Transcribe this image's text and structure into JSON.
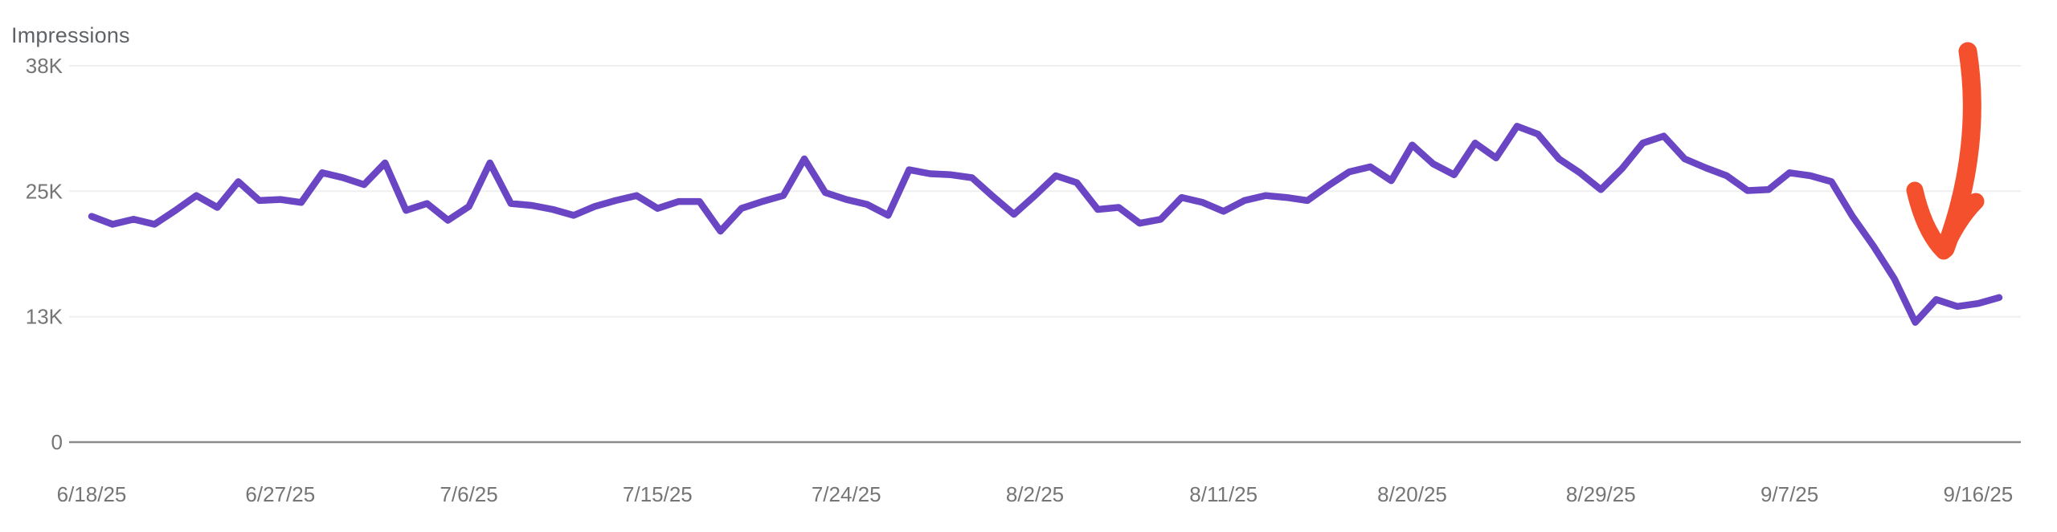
{
  "header": {
    "metric_label": "Impressions"
  },
  "chart_data": {
    "type": "line",
    "title": "Impressions",
    "legend": "none",
    "grid": "horizontal-only",
    "ylim": [
      0,
      38000
    ],
    "y_ticks": [
      {
        "label": "38K",
        "frac": 1.0
      },
      {
        "label": "25K",
        "frac": 0.6667
      },
      {
        "label": "13K",
        "frac": 0.3333
      },
      {
        "label": "0",
        "frac": 0.0
      }
    ],
    "x_tick_labels": [
      "6/18/25",
      "6/27/25",
      "7/6/25",
      "7/15/25",
      "7/24/25",
      "8/2/25",
      "8/11/25",
      "8/20/25",
      "8/29/25",
      "9/7/25",
      "9/16/25"
    ],
    "x_tick_every_days": 9,
    "line_color": "#6A46C4",
    "dates": [
      "6/18/25",
      "6/19/25",
      "6/20/25",
      "6/21/25",
      "6/22/25",
      "6/23/25",
      "6/24/25",
      "6/25/25",
      "6/26/25",
      "6/27/25",
      "6/28/25",
      "6/29/25",
      "6/30/25",
      "7/1/25",
      "7/2/25",
      "7/3/25",
      "7/4/25",
      "7/5/25",
      "7/6/25",
      "7/7/25",
      "7/8/25",
      "7/9/25",
      "7/10/25",
      "7/11/25",
      "7/12/25",
      "7/13/25",
      "7/14/25",
      "7/15/25",
      "7/16/25",
      "7/17/25",
      "7/18/25",
      "7/19/25",
      "7/20/25",
      "7/21/25",
      "7/22/25",
      "7/23/25",
      "7/24/25",
      "7/25/25",
      "7/26/25",
      "7/27/25",
      "7/28/25",
      "7/29/25",
      "7/30/25",
      "7/31/25",
      "8/1/25",
      "8/2/25",
      "8/3/25",
      "8/4/25",
      "8/5/25",
      "8/6/25",
      "8/7/25",
      "8/8/25",
      "8/9/25",
      "8/10/25",
      "8/11/25",
      "8/12/25",
      "8/13/25",
      "8/14/25",
      "8/15/25",
      "8/16/25",
      "8/17/25",
      "8/18/25",
      "8/19/25",
      "8/20/25",
      "8/21/25",
      "8/22/25",
      "8/23/25",
      "8/24/25",
      "8/25/25",
      "8/26/25",
      "8/27/25",
      "8/28/25",
      "8/29/25",
      "8/30/25",
      "8/31/25",
      "9/1/25",
      "9/2/25",
      "9/3/25",
      "9/4/25",
      "9/5/25",
      "9/6/25",
      "9/7/25",
      "9/8/25",
      "9/9/25",
      "9/10/25",
      "9/11/25",
      "9/12/25",
      "9/13/25",
      "9/14/25",
      "9/15/25",
      "9/16/25",
      "9/17/25"
    ],
    "series": [
      {
        "name": "Impressions",
        "values": [
          22800,
          22000,
          22500,
          22000,
          23400,
          24900,
          23700,
          26300,
          24400,
          24500,
          24200,
          27200,
          26700,
          26000,
          28200,
          23400,
          24100,
          22400,
          23800,
          28200,
          24100,
          23900,
          23500,
          22900,
          23800,
          24400,
          24900,
          23600,
          24300,
          24300,
          21300,
          23600,
          24300,
          24900,
          28600,
          25200,
          24500,
          24000,
          22900,
          27500,
          27100,
          27000,
          26700,
          24800,
          23000,
          24900,
          26900,
          26200,
          23500,
          23700,
          22100,
          22500,
          24700,
          24200,
          23300,
          24400,
          24900,
          24700,
          24400,
          25900,
          27300,
          27800,
          26400,
          30000,
          28100,
          27000,
          30200,
          28700,
          31900,
          31100,
          28600,
          27200,
          25500,
          27600,
          30200,
          30900,
          28600,
          27700,
          26900,
          25400,
          25500,
          27200,
          26900,
          26300,
          22800,
          19800,
          16500,
          12100,
          14400,
          13700,
          14000,
          14600
        ]
      }
    ],
    "annotation": {
      "shape": "hand-drawn-arrow",
      "color": "#F4502E",
      "meaning": "points at the steep impressions drop to ~12K around 9/13/25"
    }
  }
}
